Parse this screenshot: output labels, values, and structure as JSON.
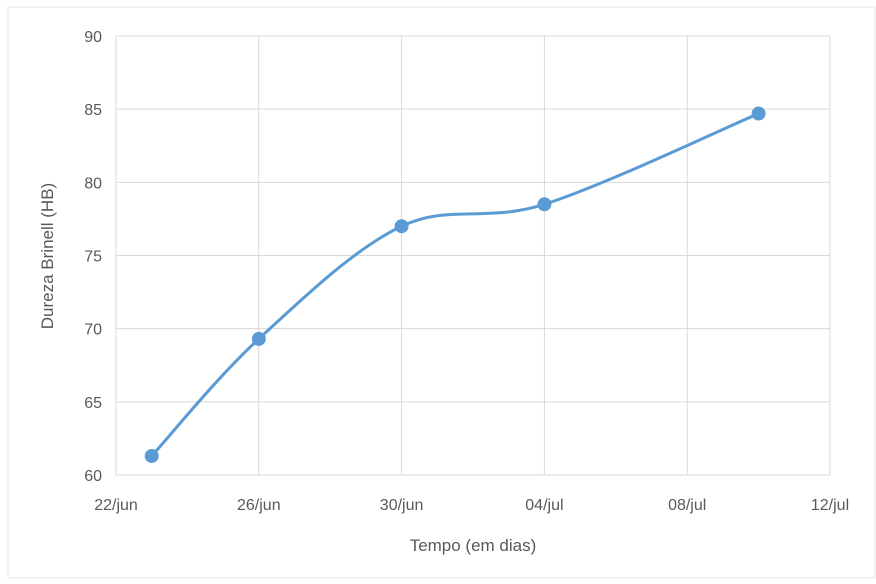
{
  "chart_data": {
    "type": "line",
    "title": "",
    "xlabel": "Tempo (em dias)",
    "ylabel": "Dureza Brinell (HB)",
    "x_ticks": [
      "22/jun",
      "26/jun",
      "30/jun",
      "04/jul",
      "08/jul",
      "12/jul"
    ],
    "x_tick_values": [
      "2000-06-22",
      "2000-06-26",
      "2000-06-30",
      "2000-07-04",
      "2000-07-08",
      "2000-07-12"
    ],
    "xlim": [
      "2000-06-22",
      "2000-07-12"
    ],
    "y_ticks": [
      "60",
      "65",
      "70",
      "75",
      "80",
      "85",
      "90"
    ],
    "ylim": [
      60,
      90
    ],
    "grid": true,
    "smooth": true,
    "legend": "none",
    "series": [
      {
        "name": "",
        "color": "#5b9bd5",
        "x": [
          "2000-06-23",
          "2000-06-26",
          "2000-06-30",
          "2000-07-04",
          "2000-07-10"
        ],
        "values": [
          61.3,
          69.3,
          77.0,
          78.5,
          84.7
        ]
      }
    ],
    "colors": {
      "line": "#5b9bd5",
      "grid": "#d9d9d9",
      "text": "#595959",
      "frame": "#d9d9d9"
    }
  }
}
